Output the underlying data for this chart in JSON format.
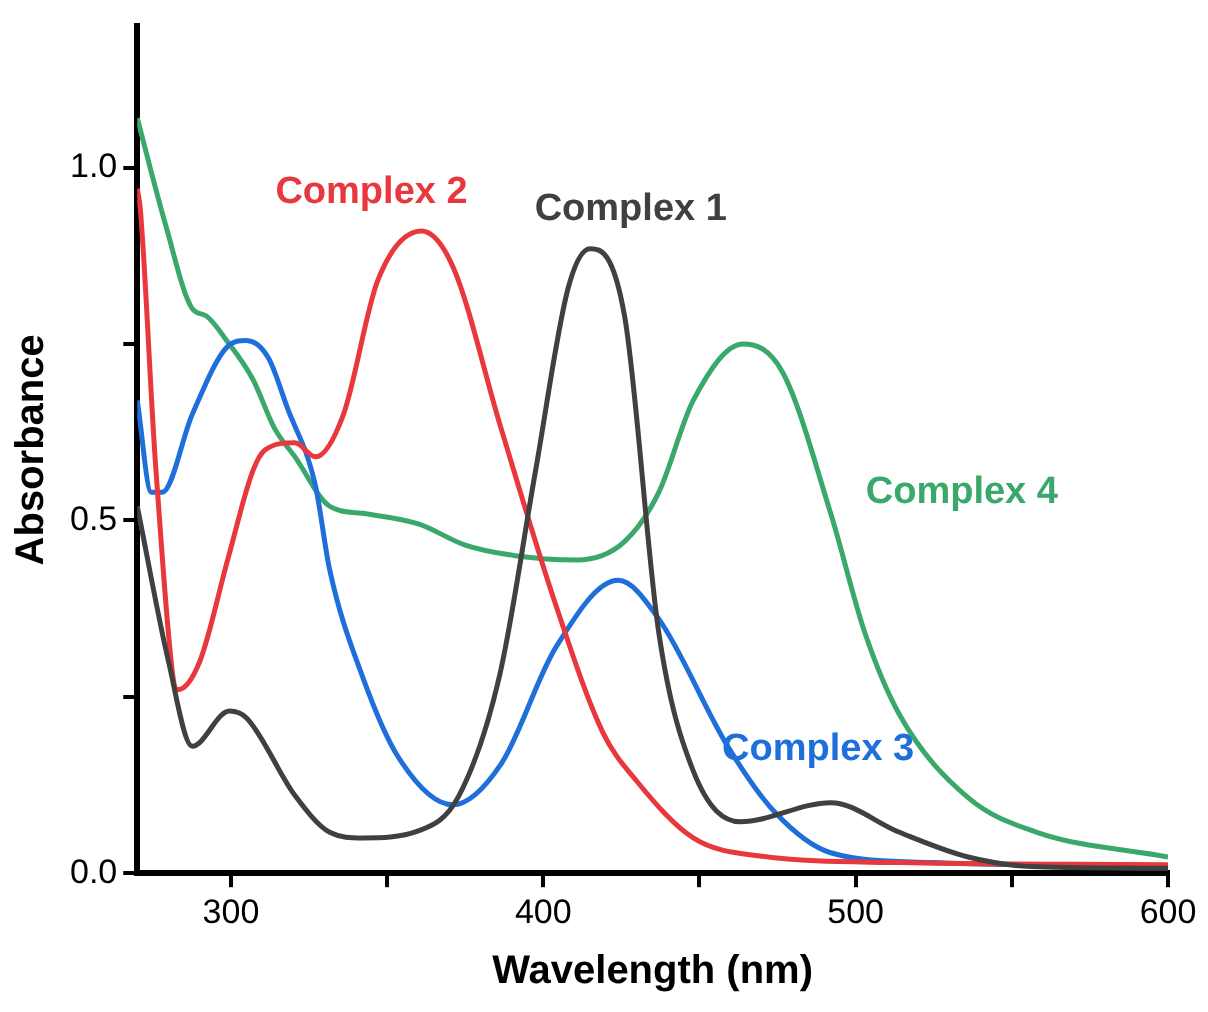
{
  "chart_data": {
    "type": "line",
    "xlabel": "Wavelength (nm)",
    "ylabel": "Absorbance",
    "xlim": [
      270,
      600
    ],
    "xticks": [
      300,
      {
        "value": 350,
        "label": null
      },
      400,
      {
        "value": 450,
        "label": null
      },
      500,
      {
        "value": 550,
        "label": null
      },
      600
    ],
    "ylim": [
      0,
      1.2
    ],
    "yticks": [
      {
        "value": 0,
        "label": "0.0"
      },
      {
        "value": 0.25,
        "label": null
      },
      {
        "value": 0.5,
        "label": "0.5"
      },
      {
        "value": 0.75,
        "label": null
      },
      {
        "value": 1.0,
        "label": "1.0"
      }
    ],
    "grid": false,
    "legend": false,
    "marker": "none",
    "line_style": "solid",
    "series": [
      {
        "name": "Complex 1",
        "color": "#404040",
        "x": [
          270,
          280,
          287.6,
          299.5,
          305,
          320.5,
          331.6,
          342,
          360,
          373,
          386,
          397.5,
          408,
          415,
          426,
          437,
          448,
          463,
          492,
          514,
          536,
          558,
          600
        ],
        "values": [
          0.52,
          0.3,
          0.18,
          0.23,
          0.22,
          0.11,
          0.058,
          0.05,
          0.06,
          0.11,
          0.28,
          0.57,
          0.83,
          0.885,
          0.79,
          0.34,
          0.145,
          0.073,
          0.1,
          0.058,
          0.023,
          0.009,
          0.007
        ]
      },
      {
        "name": "Complex 2",
        "color": "#e8383d",
        "x": [
          270,
          271,
          276,
          283,
          290,
          299,
          307,
          311,
          320.5,
          327,
          336,
          347,
          361,
          371,
          386.5,
          404,
          419,
          430,
          448,
          470,
          514,
          600
        ],
        "values": [
          0.97,
          0.94,
          0.57,
          0.26,
          0.3,
          0.445,
          0.57,
          0.6,
          0.61,
          0.59,
          0.65,
          0.84,
          0.91,
          0.86,
          0.63,
          0.38,
          0.2,
          0.13,
          0.05,
          0.024,
          0.015,
          0.012
        ]
      },
      {
        "name": "Complex 3",
        "color": "#1f6fdb",
        "x": [
          270,
          274.5,
          278,
          287.6,
          298.6,
          305,
          312,
          318,
          327,
          331.6,
          342,
          353.5,
          371,
          386.5,
          404,
          424,
          437,
          459,
          474,
          492,
          524,
          600
        ],
        "values": [
          0.67,
          0.54,
          0.54,
          0.65,
          0.745,
          0.755,
          0.73,
          0.66,
          0.55,
          0.43,
          0.28,
          0.165,
          0.097,
          0.155,
          0.32,
          0.415,
          0.36,
          0.18,
          0.087,
          0.029,
          0.015,
          0.01
        ]
      },
      {
        "name": "Complex 4",
        "color": "#3aa86a",
        "x": [
          270,
          279,
          287.6,
          292,
          298.6,
          307,
          314,
          320.5,
          331.6,
          342,
          360,
          375,
          391,
          410.7,
          426,
          437,
          448,
          464,
          476.6,
          492,
          503,
          514,
          536,
          558,
          600
        ],
        "values": [
          1.07,
          0.92,
          0.8,
          0.79,
          0.755,
          0.7,
          0.63,
          0.59,
          0.52,
          0.51,
          0.495,
          0.465,
          0.45,
          0.444,
          0.47,
          0.54,
          0.67,
          0.75,
          0.71,
          0.51,
          0.34,
          0.225,
          0.107,
          0.058,
          0.023
        ]
      }
    ]
  }
}
